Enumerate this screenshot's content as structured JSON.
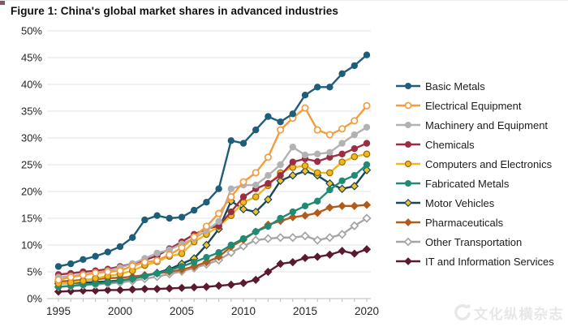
{
  "figure": {
    "title": "Figure 1: China's global market shares in advanced industries"
  },
  "watermark": {
    "text": "文化纵横杂志"
  },
  "colors": {
    "background": "#ffffff",
    "gridline": "#e3e3e3",
    "axis": "#bdbdbd",
    "tick_text": "#262626",
    "title_text": "#101010",
    "watermark_gray": "#e7e7e7"
  },
  "chart_data": {
    "type": "line",
    "title": "Figure 1: China's global market shares in advanced industries",
    "xlabel": "",
    "ylabel": "",
    "ylim": [
      0,
      50
    ],
    "grid": "horizontal, every 5%",
    "legend_position": "right",
    "x": [
      1995,
      1996,
      1997,
      1998,
      1999,
      2000,
      2001,
      2002,
      2003,
      2004,
      2005,
      2006,
      2007,
      2008,
      2009,
      2010,
      2011,
      2012,
      2013,
      2014,
      2015,
      2016,
      2017,
      2018,
      2019,
      2020
    ],
    "x_ticks": [
      {
        "value": 1995,
        "label": "1995"
      },
      {
        "value": 2000,
        "label": "2000"
      },
      {
        "value": 2005,
        "label": "2005"
      },
      {
        "value": 2010,
        "label": "2010"
      },
      {
        "value": 2015,
        "label": "2015"
      },
      {
        "value": 2020,
        "label": "2020"
      }
    ],
    "y_ticks": [
      {
        "value": 0,
        "label": "0%"
      },
      {
        "value": 5,
        "label": "5%"
      },
      {
        "value": 10,
        "label": "10%"
      },
      {
        "value": 15,
        "label": "15%"
      },
      {
        "value": 20,
        "label": "20%"
      },
      {
        "value": 25,
        "label": "25%"
      },
      {
        "value": 30,
        "label": "30%"
      },
      {
        "value": 35,
        "label": "35%"
      },
      {
        "value": 40,
        "label": "40%"
      },
      {
        "value": 45,
        "label": "45%"
      },
      {
        "value": 50,
        "label": "50%"
      }
    ],
    "series": [
      {
        "name": "Basic Metals",
        "color": "#1f5e79",
        "marker": "circle",
        "values": [
          6.0,
          6.5,
          7.3,
          7.9,
          8.7,
          9.7,
          11.4,
          14.7,
          15.5,
          15.0,
          15.2,
          16.5,
          18.0,
          20.5,
          29.5,
          29.0,
          31.5,
          34.0,
          33.0,
          34.5,
          38.0,
          39.5,
          39.5,
          42.0,
          43.5,
          45.5
        ]
      },
      {
        "name": "Electrical Equipment",
        "color": "#f49c3e",
        "marker": "circle-open",
        "marker_fill": "#ffffff",
        "values": [
          3.5,
          4.0,
          4.4,
          4.8,
          5.0,
          5.2,
          6.1,
          6.8,
          7.1,
          8.2,
          9.5,
          11.5,
          13.5,
          15.9,
          19.0,
          21.8,
          23.5,
          26.4,
          31.5,
          33.7,
          35.6,
          31.5,
          30.6,
          31.7,
          33.2,
          36.0
        ]
      },
      {
        "name": "Machinery and Equipment",
        "color": "#b2b2b2",
        "marker": "circle",
        "values": [
          4.0,
          4.2,
          4.5,
          4.8,
          5.2,
          5.8,
          6.5,
          7.5,
          8.5,
          9.1,
          10.2,
          11.2,
          12.7,
          14.4,
          20.5,
          21.2,
          21.2,
          23.0,
          25.0,
          28.3,
          26.8,
          27.0,
          27.3,
          29.0,
          30.6,
          32.0
        ]
      },
      {
        "name": "Chemicals",
        "color": "#9c2e44",
        "marker": "circle",
        "values": [
          4.5,
          4.7,
          5.0,
          5.2,
          5.5,
          6.0,
          6.5,
          7.2,
          8.0,
          9.3,
          10.6,
          12.0,
          13.0,
          13.6,
          16.2,
          19.0,
          20.5,
          21.5,
          23.0,
          25.5,
          26.1,
          25.6,
          26.4,
          27.0,
          28.0,
          29.0
        ]
      },
      {
        "name": "Computers and Electronics",
        "color": "#f3b71b",
        "marker": "circle",
        "marker_edge": "#96700a",
        "values": [
          2.8,
          3.0,
          3.3,
          3.8,
          4.2,
          4.6,
          5.2,
          6.2,
          6.9,
          7.9,
          8.4,
          10.6,
          12.0,
          13.5,
          15.5,
          18.0,
          19.0,
          21.1,
          23.5,
          24.5,
          24.8,
          23.5,
          23.5,
          25.5,
          26.5,
          27.0
        ]
      },
      {
        "name": "Fabricated Metals",
        "color": "#208a75",
        "marker": "circle",
        "values": [
          2.2,
          2.4,
          2.6,
          2.8,
          3.0,
          3.3,
          3.7,
          4.2,
          4.7,
          5.3,
          6.0,
          6.8,
          7.7,
          8.6,
          10.0,
          11.2,
          12.5,
          13.5,
          15.0,
          16.2,
          17.3,
          18.2,
          20.3,
          22.0,
          23.0,
          25.0
        ]
      },
      {
        "name": "Motor Vehicles",
        "color": "#1b4759",
        "marker": "diamond",
        "marker_fill": "#ecc52d",
        "marker_edge": "#1b4759",
        "values": [
          2.8,
          2.9,
          3.0,
          3.1,
          3.2,
          3.4,
          3.7,
          4.2,
          4.8,
          5.5,
          6.5,
          7.5,
          10.0,
          13.0,
          18.2,
          16.7,
          16.2,
          18.5,
          22.0,
          23.0,
          23.8,
          23.0,
          21.5,
          20.5,
          21.0,
          24.0
        ]
      },
      {
        "name": "Pharmaceuticals",
        "color": "#b05c1d",
        "marker": "diamond",
        "values": [
          3.2,
          3.3,
          3.5,
          3.6,
          3.8,
          3.9,
          4.1,
          4.4,
          4.7,
          5.0,
          5.4,
          6.0,
          6.8,
          7.8,
          9.7,
          11.0,
          12.5,
          13.8,
          14.5,
          15.2,
          15.5,
          16.0,
          17.0,
          17.3,
          17.3,
          17.5
        ]
      },
      {
        "name": "Other Transportation",
        "color": "#a5a5a5",
        "marker": "diamond-open",
        "marker_fill": "#ffffff",
        "values": [
          2.2,
          2.3,
          2.5,
          2.6,
          2.8,
          3.0,
          3.3,
          3.7,
          4.1,
          4.6,
          5.1,
          5.7,
          6.4,
          7.2,
          8.6,
          9.8,
          10.9,
          11.2,
          11.4,
          11.4,
          11.7,
          10.9,
          11.4,
          12.0,
          13.6,
          15.0
        ]
      },
      {
        "name": "IT and Information Services",
        "color": "#5a1a2f",
        "marker": "diamond",
        "values": [
          1.3,
          1.4,
          1.5,
          1.5,
          1.6,
          1.6,
          1.7,
          1.8,
          1.8,
          1.9,
          2.0,
          2.1,
          2.2,
          2.4,
          2.6,
          2.9,
          3.5,
          5.0,
          6.5,
          6.8,
          7.6,
          7.8,
          8.2,
          8.9,
          8.4,
          9.2
        ]
      }
    ]
  }
}
